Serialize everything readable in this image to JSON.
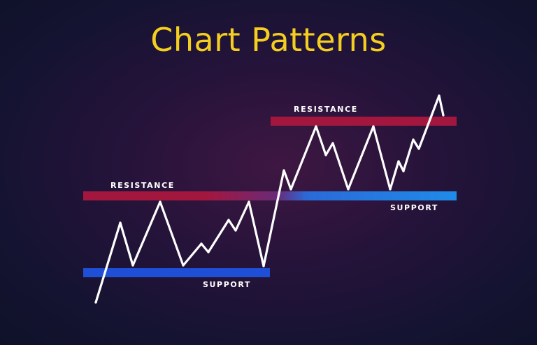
{
  "title": "Chart Patterns",
  "colors": {
    "title": "#f5cf20",
    "resistance": "#a3173f",
    "support": "#1f4fd6",
    "support_right": "#1f8be8",
    "price_line": "#ffffff"
  },
  "chart_data": {
    "type": "line",
    "title": "Chart Patterns",
    "xlabel": "",
    "ylabel": "",
    "grid": false,
    "levels": [
      {
        "kind": "resistance",
        "label": "RESISTANCE",
        "section": "left"
      },
      {
        "kind": "support",
        "label": "SUPPORT",
        "section": "left"
      },
      {
        "kind": "resistance",
        "label": "RESISTANCE",
        "section": "right"
      },
      {
        "kind": "support",
        "label": "SUPPORT",
        "section": "right"
      }
    ],
    "series": [
      {
        "values": [
          [
            137,
            433
          ],
          [
            172,
            319
          ],
          [
            190,
            380
          ],
          [
            229,
            289
          ],
          [
            262,
            380
          ],
          [
            288,
            349
          ],
          [
            298,
            361
          ],
          [
            327,
            315
          ],
          [
            337,
            330
          ],
          [
            356,
            289
          ],
          [
            377,
            381
          ],
          [
            406,
            244
          ],
          [
            416,
            271
          ],
          [
            452,
            181
          ],
          [
            466,
            222
          ],
          [
            476,
            205
          ],
          [
            498,
            271
          ],
          [
            534,
            181
          ],
          [
            558,
            271
          ],
          [
            570,
            231
          ],
          [
            577,
            245
          ],
          [
            591,
            200
          ],
          [
            599,
            213
          ],
          [
            628,
            137
          ],
          [
            634,
            165
          ]
        ]
      }
    ]
  }
}
